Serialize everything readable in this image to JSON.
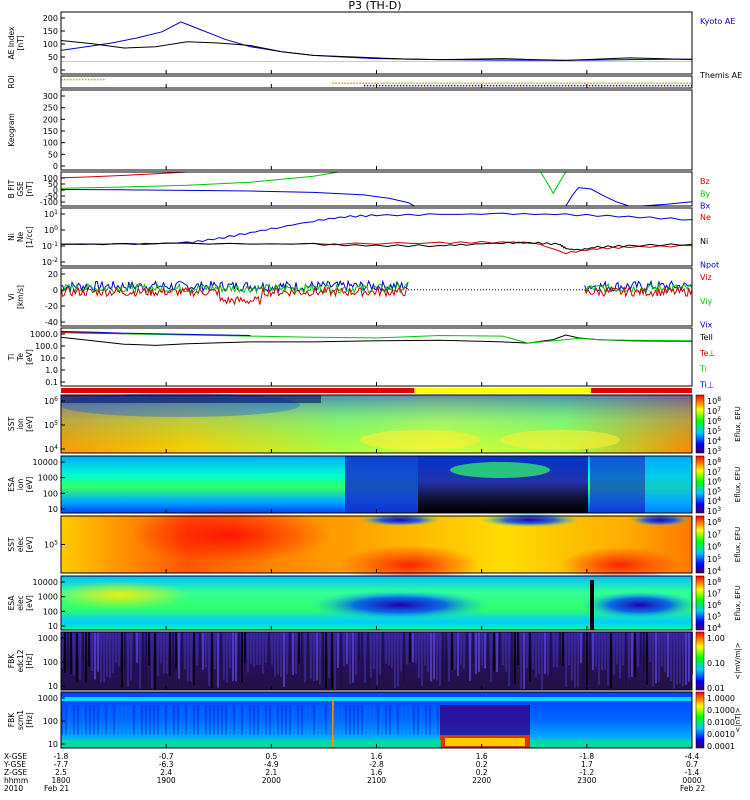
{
  "title": "P3 (TH-D)",
  "colors": {
    "kyoto_ae": "#0000cc",
    "themis_ae": "#000000",
    "red": "#d00000",
    "green": "#00c800",
    "blue": "#0000d0",
    "black": "#000000",
    "gold": "#c8a000",
    "purple": "#600060"
  },
  "time_axis": {
    "tick_labels_hhmm": [
      "1800",
      "1900",
      "2000",
      "2100",
      "2200",
      "2300",
      "0000"
    ],
    "row_labels": [
      "X-GSE",
      "Y-GSE",
      "Z-GSE",
      "hhmm",
      "2010"
    ],
    "x_gse": [
      "-1.8",
      "-0.7",
      "0.5",
      "1.6",
      "1.6",
      "-1.8",
      "-4.4"
    ],
    "y_gse": [
      "-7.7",
      "-6.3",
      "-4.9",
      "-2.8",
      "0.2",
      "1.7",
      "0.7"
    ],
    "z_gse": [
      "2.5",
      "2.4",
      "2.1",
      "1.6",
      "0.2",
      "-1.2",
      "-1.4"
    ],
    "start_label": "Feb 21",
    "end_label": "Feb 22"
  },
  "panel_labels": {
    "ae": [
      "AE Index",
      "[nT]"
    ],
    "roi": [
      "ROI"
    ],
    "keogram": [
      "Keogram"
    ],
    "bfit": [
      "B FIT",
      "GSE",
      "[nT]"
    ],
    "density": [
      "Ni",
      "Ne",
      "[1/cc]"
    ],
    "velocity": [
      "Vi",
      "[km/s]"
    ],
    "temperature": [
      "Ti",
      "Te",
      "[eV]"
    ],
    "sst_ion": [
      "SST",
      "ion",
      "[eV]"
    ],
    "esa_ion": [
      "ESA",
      "ion",
      "[eV]"
    ],
    "sst_elec": [
      "SST",
      "elec",
      "[eV]"
    ],
    "esa_elec": [
      "ESA",
      "elec",
      "[eV]"
    ],
    "fbk_edc12": [
      "FBK",
      "edc12",
      "[Hz]"
    ],
    "fbk_scm1": [
      "FBK",
      "scm1",
      "[Hz]"
    ]
  },
  "right_labels": {
    "ae": [
      "Kyoto AE",
      "Themis AE"
    ],
    "bfit": [
      "Bz",
      "By",
      "Bx"
    ],
    "density": [
      "Ne",
      "Ni",
      "Npot"
    ],
    "velocity": [
      "Viz",
      "Viy",
      "Vix"
    ],
    "temperature": [
      "Tell",
      "Te⊥",
      "Ti",
      "Ti⊥"
    ]
  },
  "colorbar_labels": {
    "sst_ion": "Eflux, EFU",
    "esa_ion": "Eflux, EFU",
    "sst_elec": "Eflux, EFU",
    "esa_elec": "Eflux, EFU",
    "fbk_edc12": "<|mV/m|>",
    "fbk_scm1": "<|nT|>"
  },
  "chart_data": [
    {
      "type": "line",
      "name": "ae",
      "ylim": [
        -50,
        200
      ],
      "ytick_labels": [
        "200",
        "150",
        "100",
        "50",
        "0"
      ],
      "series": [
        {
          "name": "Kyoto AE",
          "color": "#0000cc",
          "x": [
            0,
            4,
            8,
            12,
            16,
            19,
            20,
            22,
            26,
            30,
            35,
            40,
            45,
            50,
            55,
            60,
            70,
            80,
            90,
            100
          ],
          "y": [
            45,
            60,
            75,
            95,
            120,
            160,
            150,
            130,
            90,
            60,
            40,
            25,
            18,
            12,
            10,
            8,
            6,
            5,
            8,
            10
          ]
        },
        {
          "name": "Themis AE",
          "color": "#000000",
          "x": [
            0,
            5,
            10,
            15,
            20,
            25,
            30,
            35,
            40,
            45,
            50,
            55,
            60,
            65,
            70,
            75,
            80,
            85,
            90,
            95,
            100
          ],
          "y": [
            85,
            72,
            55,
            60,
            80,
            75,
            65,
            40,
            25,
            20,
            15,
            10,
            8,
            10,
            12,
            8,
            5,
            10,
            15,
            12,
            8
          ]
        }
      ]
    },
    {
      "type": "line",
      "name": "roi",
      "series": [
        {
          "name": "roi-gold",
          "color": "#c8a000",
          "x": [
            0,
            7,
            43,
            100
          ],
          "level": [
            0.3,
            0.3,
            0.6,
            0.6
          ]
        },
        {
          "name": "roi-purple",
          "color": "#600060",
          "x": [
            48,
            100
          ],
          "level": [
            0.8,
            0.8
          ]
        }
      ]
    },
    {
      "type": "line",
      "name": "keogram",
      "ylim": [
        0,
        300
      ],
      "ytick_labels": [
        "300",
        "250",
        "200",
        "150",
        "100",
        "50",
        "0"
      ],
      "series": []
    },
    {
      "type": "line",
      "name": "bfit",
      "ylim": [
        -100,
        100
      ],
      "ytick_labels": [
        "100",
        "50",
        "0",
        "-50",
        "-100"
      ],
      "series": [
        {
          "name": "Bz",
          "color": "#d00000",
          "x": [
            0,
            5,
            10,
            15,
            20
          ],
          "y": [
            65,
            72,
            80,
            90,
            100
          ]
        },
        {
          "name": "By",
          "color": "#00c800",
          "x": [
            0,
            10,
            20,
            30,
            40,
            44
          ],
          "y": [
            5,
            12,
            22,
            40,
            75,
            100
          ]
        },
        {
          "name": "By-2",
          "color": "#00c800",
          "x": [
            76,
            77,
            78,
            79,
            80
          ],
          "y": [
            100,
            40,
            -25,
            40,
            100
          ]
        },
        {
          "name": "Bx",
          "color": "#0000d0",
          "x": [
            0,
            10,
            20,
            30,
            40,
            48,
            52,
            55,
            56
          ],
          "y": [
            -3,
            -5,
            -8,
            -12,
            -20,
            -35,
            -55,
            -80,
            -100
          ]
        },
        {
          "name": "Bx-2",
          "color": "#0000d0",
          "x": [
            80,
            81,
            82,
            84,
            86,
            88,
            90
          ],
          "y": [
            -100,
            -40,
            8,
            0,
            -40,
            -75,
            -100
          ]
        },
        {
          "name": "Bx-3",
          "color": "#0000d0",
          "x": [
            92,
            96,
            100
          ],
          "y": [
            -100,
            -90,
            -75
          ]
        }
      ]
    },
    {
      "type": "line",
      "name": "density",
      "yscale": "log",
      "ylim": [
        -2.5,
        1.5
      ],
      "ytick_labels": [
        "10^1",
        "10^0",
        "10^-1",
        "10^-2"
      ],
      "series": [
        {
          "name": "Ni",
          "color": "#0000d0",
          "x": [
            0,
            10,
            20,
            25,
            30,
            35,
            40,
            45,
            50,
            60,
            70,
            80,
            90,
            100
          ],
          "y": [
            -1.0,
            -1.0,
            -0.9,
            -0.6,
            -0.2,
            0.2,
            0.6,
            0.9,
            1.0,
            1.05,
            1.1,
            1.05,
            0.9,
            0.7
          ]
        },
        {
          "name": "Ne",
          "color": "#d00000",
          "x": [
            0,
            20,
            40,
            60,
            70,
            75,
            80,
            85,
            90,
            100
          ],
          "y": [
            -1.0,
            -0.95,
            -1.0,
            -0.9,
            -0.85,
            -0.9,
            -1.6,
            -1.3,
            -1.2,
            -1.1
          ]
        },
        {
          "name": "Npot",
          "color": "#000000",
          "x": [
            0,
            20,
            40,
            50,
            60,
            65,
            70,
            75,
            79,
            80,
            82,
            85,
            90,
            100
          ],
          "y": [
            -1.0,
            -0.95,
            -1.0,
            -1.1,
            -1.1,
            -1.0,
            -0.9,
            -0.9,
            -1.0,
            -1.3,
            -1.4,
            -1.2,
            -1.1,
            -1.0
          ]
        }
      ]
    },
    {
      "type": "line",
      "name": "velocity",
      "ylim": [
        -50,
        30
      ],
      "ytick_labels": [
        "20",
        "0",
        "-20",
        "-40"
      ],
      "series": [
        {
          "name": "Vix",
          "color": "#0000d0",
          "segments": [
            [
              0,
              55
            ],
            [
              83,
              100
            ]
          ],
          "center": 5,
          "amp": 7
        },
        {
          "name": "Viy",
          "color": "#00c800",
          "segments": [
            [
              0,
              55
            ],
            [
              83,
              100
            ]
          ],
          "center": 2,
          "amp": 6
        },
        {
          "name": "Viz",
          "color": "#d00000",
          "segments": [
            [
              0,
              55
            ],
            [
              83,
              100
            ]
          ],
          "center": -3,
          "amp": 6
        },
        {
          "name": "gap",
          "color": "#000000",
          "dotted_from": 55,
          "dotted_to": 83,
          "y": 0
        }
      ]
    },
    {
      "type": "line",
      "name": "temperature",
      "yscale": "log",
      "ylim": [
        -1.5,
        3.5
      ],
      "ytick_labels": [
        "1000.0",
        "100.0",
        "10.0",
        "1.0",
        "0.1"
      ],
      "series": [
        {
          "name": "Tell",
          "color": "#000000",
          "x": [
            0,
            5,
            10,
            15,
            20,
            30,
            40,
            50,
            60,
            70,
            74,
            78,
            80,
            82,
            85,
            90,
            100
          ],
          "y": [
            2.7,
            2.4,
            2.1,
            2.0,
            2.15,
            2.3,
            2.3,
            2.4,
            2.45,
            2.3,
            2.2,
            2.5,
            2.9,
            2.65,
            2.5,
            2.4,
            2.35
          ]
        },
        {
          "name": "Ti",
          "color": "#00c800",
          "x": [
            0,
            5,
            10,
            20,
            30,
            40,
            50,
            55,
            60,
            70,
            74,
            78,
            80,
            82,
            85,
            90,
            100
          ],
          "y": [
            3.2,
            3.1,
            3.0,
            2.9,
            2.8,
            2.7,
            2.65,
            2.75,
            2.85,
            2.8,
            2.2,
            2.4,
            2.5,
            2.6,
            2.5,
            2.45,
            2.4
          ]
        },
        {
          "name": "Ti⊥",
          "color": "#0000d0",
          "x": [
            0,
            5,
            10,
            20,
            30
          ],
          "y": [
            3.2,
            3.15,
            3.05,
            2.95,
            2.85
          ]
        },
        {
          "name": "Te⊥",
          "color": "#d00000",
          "x": [
            0,
            5,
            10
          ],
          "y": [
            3.1,
            3.05,
            3.0
          ]
        }
      ]
    },
    {
      "type": "heatmap",
      "name": "mode_bar",
      "segments": [
        {
          "from": 0,
          "to": 56,
          "color": "#e00000"
        },
        {
          "from": 56,
          "to": 84,
          "color": "#ffff00"
        },
        {
          "from": 84,
          "to": 100,
          "color": "#e00000"
        }
      ]
    },
    {
      "type": "heatmap",
      "name": "sst_ion",
      "ytick_labels": [
        "10^6",
        "10^5",
        "10^4"
      ],
      "colorbar_ticks": [
        "10^8",
        "10^7",
        "10^6",
        "10^5",
        "10^4",
        "10^3"
      ]
    },
    {
      "type": "heatmap",
      "name": "esa_ion",
      "ytick_labels": [
        "10000",
        "1000",
        "100",
        "10"
      ],
      "colorbar_ticks": [
        "10^8",
        "10^7",
        "10^6",
        "10^5",
        "10^4",
        "10^3"
      ]
    },
    {
      "type": "heatmap",
      "name": "sst_elec",
      "ytick_labels": [
        "10^5"
      ],
      "colorbar_ticks": [
        "10^8",
        "10^7",
        "10^6",
        "10^5",
        "10^4"
      ]
    },
    {
      "type": "heatmap",
      "name": "esa_elec",
      "ytick_labels": [
        "10000",
        "1000",
        "100",
        "10"
      ],
      "colorbar_ticks": [
        "10^8",
        "10^7",
        "10^6",
        "10^5",
        "10^4"
      ]
    },
    {
      "type": "heatmap",
      "name": "fbk_edc12",
      "ytick_labels": [
        "1000",
        "100",
        "10"
      ],
      "colorbar_ticks": [
        "1.00",
        "0.10",
        "0.01"
      ]
    },
    {
      "type": "heatmap",
      "name": "fbk_scm1",
      "ytick_labels": [
        "1000",
        "100",
        "10"
      ],
      "colorbar_ticks": [
        "1.0000",
        "0.1000",
        "0.0100",
        "0.0010",
        "0.0001"
      ]
    }
  ]
}
